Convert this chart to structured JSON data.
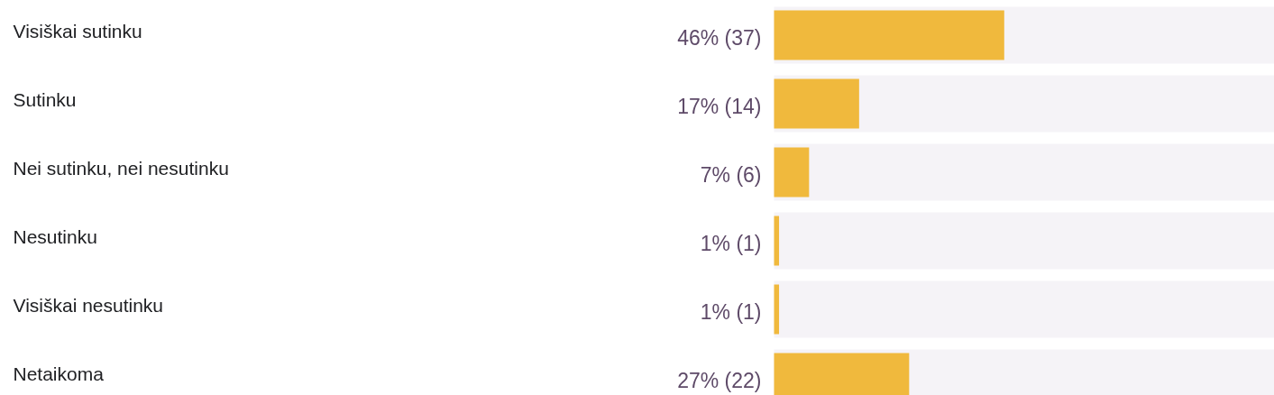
{
  "chart_data": {
    "type": "bar",
    "orientation": "horizontal",
    "categories": [
      "Visiškai sutinku",
      "Sutinku",
      "Nei sutinku, nei nesutinku",
      "Nesutinku",
      "Visiškai nesutinku",
      "Netaikoma"
    ],
    "values": [
      46,
      17,
      7,
      1,
      1,
      27
    ],
    "value_labels": [
      "46% (37)",
      "17% (14)",
      "7% (6)",
      "1% (1)",
      "1% (1)",
      "27% (22)"
    ],
    "color": "#f0b93d",
    "xlim": [
      0,
      100
    ],
    "tick_labels": false
  }
}
